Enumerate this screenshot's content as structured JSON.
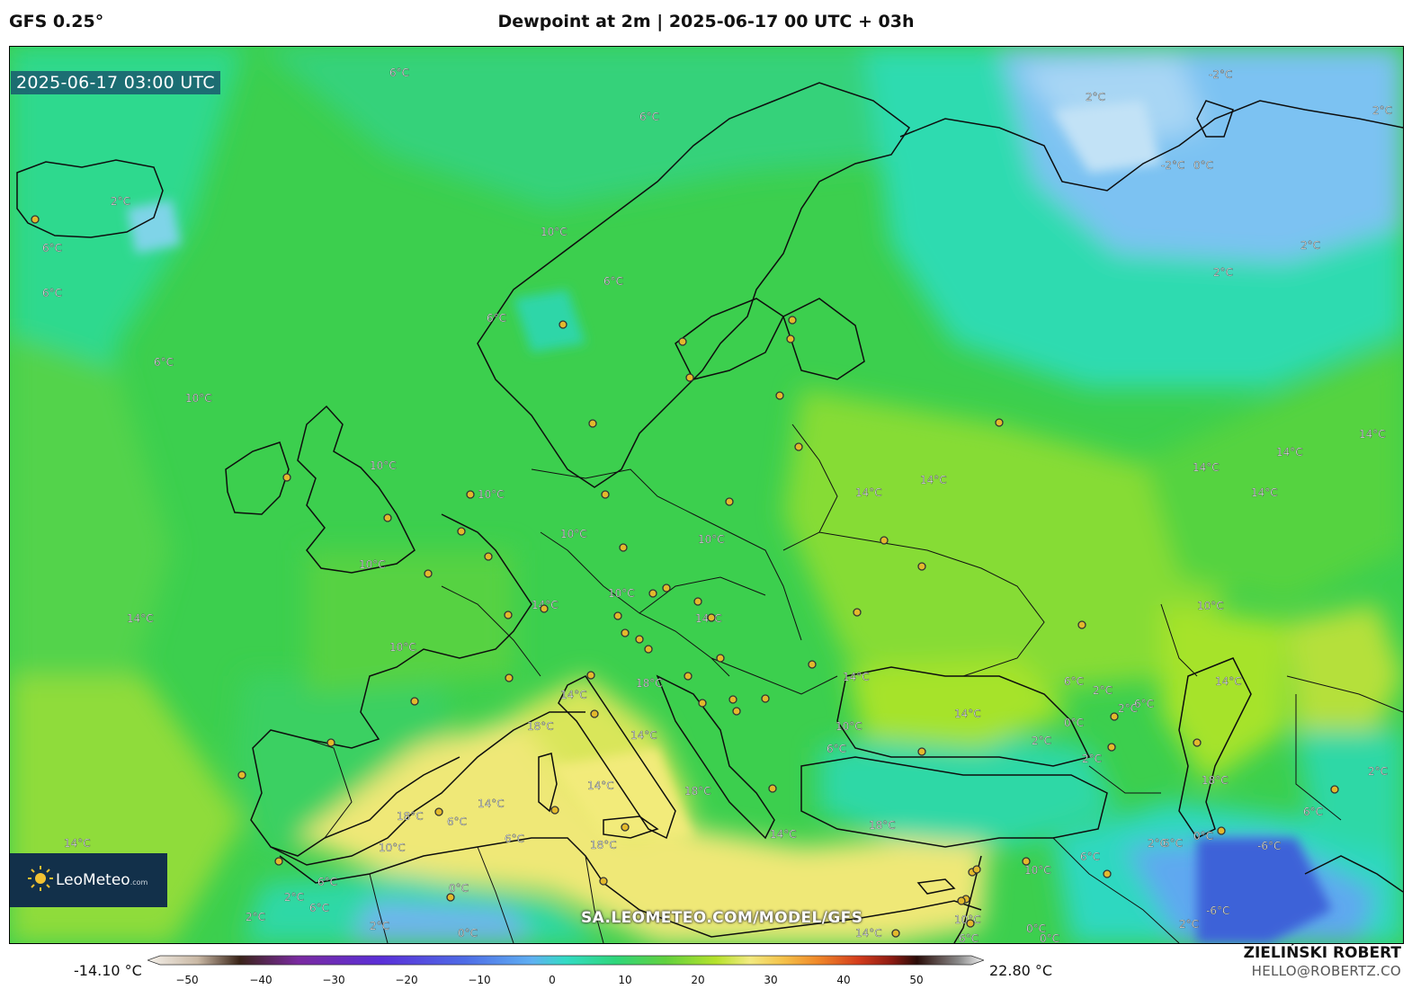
{
  "header": {
    "model": "GFS 0.25°",
    "title": "Dewpoint at 2m | 2025-06-17 00 UTC + 03h"
  },
  "map": {
    "timestamp": "2025-06-17 03:00 UTC",
    "watermark": "SA.LEOMETEO.COM/MODEL/GFS",
    "logo": {
      "name": "LeoMeteo",
      "suffix": ".com"
    },
    "contour_labels": [
      "6°C",
      "2°C",
      "6°C",
      "6°C",
      "6°C",
      "10°C",
      "10°C",
      "6°C",
      "6°C",
      "6°C",
      "10°C",
      "10°C",
      "10°C",
      "14°C",
      "10°C",
      "10°C",
      "10°C",
      "10°C",
      "14°C",
      "14°C",
      "14°C",
      "18°C",
      "18°C",
      "14°C",
      "14°C",
      "14°C",
      "18°C",
      "18°C",
      "14°C",
      "18°C",
      "14°C",
      "18°C",
      "14°C",
      "6°C",
      "6°C",
      "10°C",
      "6°C",
      "2°C",
      "2°C",
      "0°C",
      "0°C",
      "2°C",
      "6°C",
      "2°C",
      "-2°C",
      "0°C",
      "2°C",
      "2°C",
      "-2°C",
      "2°C",
      "14°C",
      "14°C",
      "14°C",
      "14°C",
      "14°C",
      "14°C",
      "10°C",
      "14°C",
      "14°C",
      "6°C",
      "2°C",
      "2°C",
      "0°C",
      "6°C",
      "6°C",
      "2°C",
      "10°C",
      "10°C",
      "6°C",
      "6°C",
      "2°C",
      "0°C",
      "-6°C",
      "-6°C",
      "6°C",
      "2°C",
      "0°C",
      "2°C",
      "10°C",
      "0°C",
      "2°C",
      "6°C",
      "14°C",
      "18°C"
    ],
    "colors": {
      "cold_blue": "#5fa8f0",
      "icy": "#a8d6f4",
      "teal": "#2ed8a6",
      "green": "#3ccf4e",
      "lime": "#a6e32c",
      "yellow": "#f2eb7a",
      "deep_blue": "#3366dd"
    }
  },
  "colorbar": {
    "min_label": "-14.10 °C",
    "max_label": "22.80 °C",
    "ticks": [
      "−50",
      "−40",
      "−30",
      "−20",
      "−10",
      "0",
      "10",
      "20",
      "30",
      "40",
      "50"
    ]
  },
  "credits": {
    "author": "ZIELIŃSKI ROBERT",
    "email": "HELLO@ROBERTZ.CO"
  }
}
